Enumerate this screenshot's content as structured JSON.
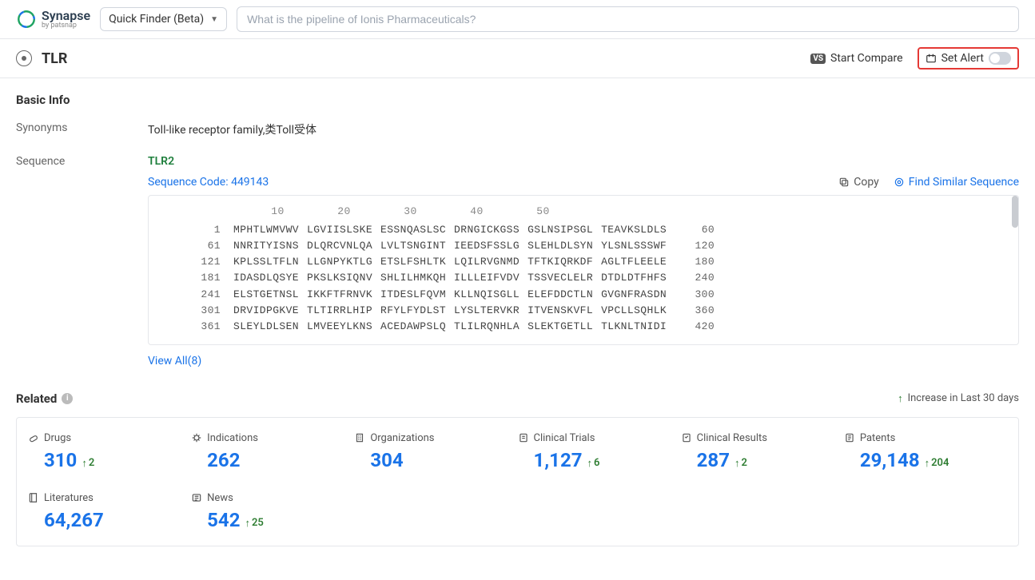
{
  "header": {
    "brand_title": "Synapse",
    "brand_sub": "by patsnap",
    "quickfinder_label": "Quick Finder (Beta)",
    "search_placeholder": "What is the pipeline of Ionis Pharmaceuticals?"
  },
  "titlebar": {
    "title": "TLR",
    "compare_label": "Start Compare",
    "alert_label": "Set Alert"
  },
  "basic_info": {
    "section_title": "Basic Info",
    "synonyms_label": "Synonyms",
    "synonyms_value": "Toll-like receptor family,类Toll受体",
    "sequence_label": "Sequence",
    "sequence_name": "TLR2",
    "sequence_code_label": "Sequence Code: 449143",
    "copy_label": "Copy",
    "find_similar_label": "Find Similar Sequence",
    "ruler": [
      "10",
      "20",
      "30",
      "40",
      "50"
    ],
    "rows": [
      {
        "start": "1",
        "chunks": [
          "MPHTLWMVWV",
          "LGVIISLSKE",
          "ESSNQASLSC",
          "DRNGICKGSS",
          "GSLNSIPSGL",
          "TEAVKSLDLS"
        ],
        "end": "60"
      },
      {
        "start": "61",
        "chunks": [
          "NNRITYISNS",
          "DLQRCVNLQA",
          "LVLTSNGINT",
          "IEEDSFSSLG",
          "SLEHLDLSYN",
          "YLSNLSSSWF"
        ],
        "end": "120"
      },
      {
        "start": "121",
        "chunks": [
          "KPLSSLTFLN",
          "LLGNPYKTLG",
          "ETSLFSHLTK",
          "LQILRVGNMD",
          "TFTKIQRKDF",
          "AGLTFLEELE"
        ],
        "end": "180"
      },
      {
        "start": "181",
        "chunks": [
          "IDASDLQSYE",
          "PKSLKSIQNV",
          "SHLILHMKQH",
          "ILLLEIFVDV",
          "TSSVECLELR",
          "DTDLDTFHFS"
        ],
        "end": "240"
      },
      {
        "start": "241",
        "chunks": [
          "ELSTGETNSL",
          "IKKFTFRNVK",
          "ITDESLFQVM",
          "KLLNQISGLL",
          "ELEFDDCTLN",
          "GVGNFRASDN"
        ],
        "end": "300"
      },
      {
        "start": "301",
        "chunks": [
          "DRVIDPGKVE",
          "TLTIRRLHIP",
          "RFYLFYDLST",
          "LYSLTERVKR",
          "ITVENSKVFL",
          "VPCLLSQHLK"
        ],
        "end": "360"
      },
      {
        "start": "361",
        "chunks": [
          "SLEYLDLSEN",
          "LMVEEYLKNS",
          "ACEDAWPSLQ",
          "TLILRQNHLA",
          "SLEKTGETLL",
          "TLKNLTNIDI"
        ],
        "end": "420"
      }
    ],
    "view_all_label": "View All(8)"
  },
  "related": {
    "title": "Related",
    "legend": "Increase in Last 30 days",
    "stats": [
      {
        "key": "drugs",
        "label": "Drugs",
        "value": "310",
        "delta": "2",
        "icon": "pill"
      },
      {
        "key": "indications",
        "label": "Indications",
        "value": "262",
        "delta": "",
        "icon": "virus"
      },
      {
        "key": "organizations",
        "label": "Organizations",
        "value": "304",
        "delta": "",
        "icon": "building"
      },
      {
        "key": "clinical_trials",
        "label": "Clinical Trials",
        "value": "1,127",
        "delta": "6",
        "icon": "trial"
      },
      {
        "key": "clinical_results",
        "label": "Clinical Results",
        "value": "287",
        "delta": "2",
        "icon": "result"
      },
      {
        "key": "patents",
        "label": "Patents",
        "value": "29,148",
        "delta": "204",
        "icon": "patent"
      },
      {
        "key": "literatures",
        "label": "Literatures",
        "value": "64,267",
        "delta": "",
        "icon": "book"
      },
      {
        "key": "news",
        "label": "News",
        "value": "542",
        "delta": "25",
        "icon": "news"
      }
    ]
  }
}
